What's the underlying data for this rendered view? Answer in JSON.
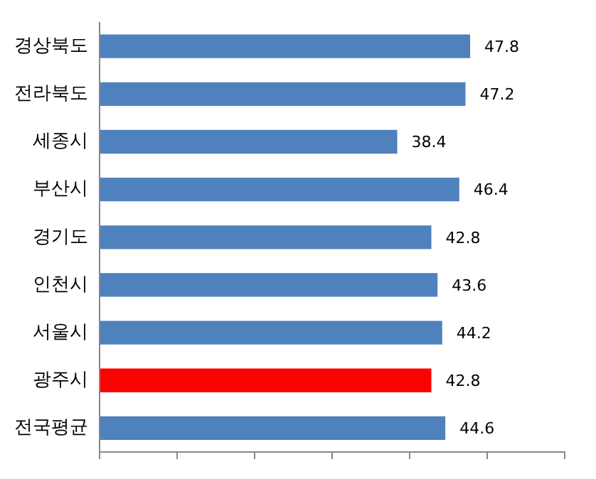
{
  "chart_data": {
    "type": "bar",
    "orientation": "horizontal",
    "categories": [
      "경상북도",
      "전라북도",
      "세종시",
      "부산시",
      "경기도",
      "인천시",
      "서울시",
      "광주시",
      "전국평균"
    ],
    "values": [
      47.8,
      47.2,
      38.4,
      46.4,
      42.8,
      43.6,
      44.2,
      42.8,
      44.6
    ],
    "colors": [
      "#4f81bd",
      "#4f81bd",
      "#4f81bd",
      "#4f81bd",
      "#4f81bd",
      "#4f81bd",
      "#4f81bd",
      "#ff0000",
      "#4f81bd"
    ],
    "xlim": [
      0,
      60
    ],
    "xticks": [
      {
        "value": 0,
        "label": null
      },
      {
        "value": 10,
        "label": null
      },
      {
        "value": 20,
        "label": null
      },
      {
        "value": 30,
        "label": null
      },
      {
        "value": 40,
        "label": null
      },
      {
        "value": 50,
        "label": null
      },
      {
        "value": 60,
        "label": null
      }
    ],
    "tick_labels": "y",
    "grid": false,
    "legend": false,
    "data_labels": true
  }
}
